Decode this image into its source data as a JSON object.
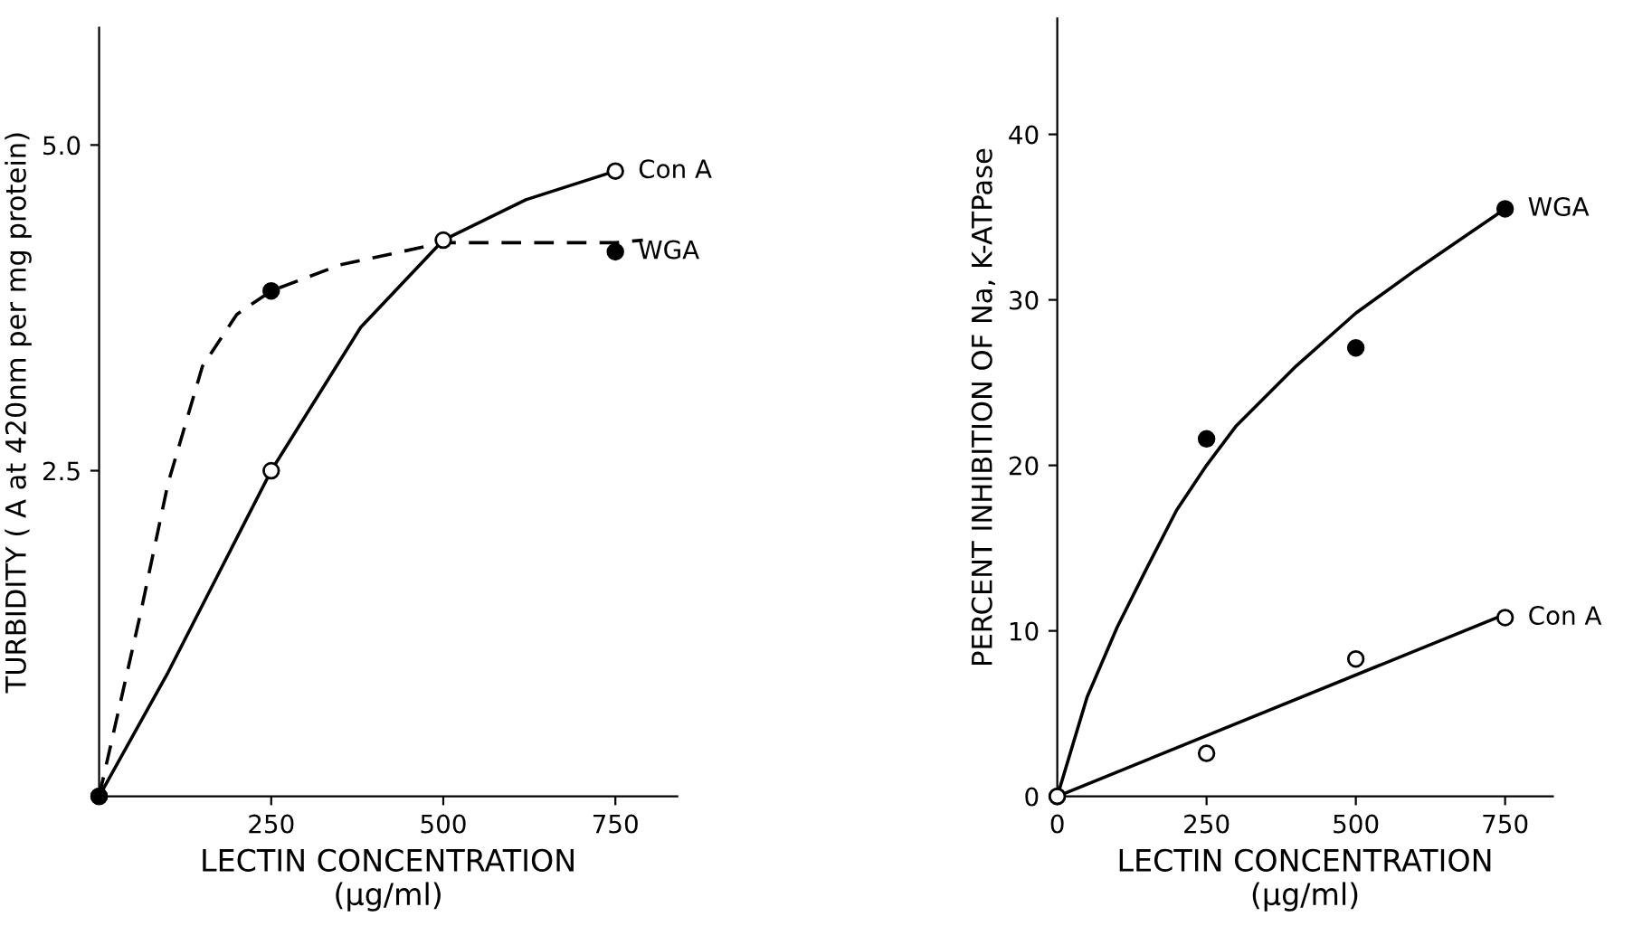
{
  "chart_data": [
    {
      "type": "scatter",
      "xlabel": "LECTIN CONCENTRATION\n(μg/ml)",
      "ylabel": "TURBIDITY ( A at 420nm per mg protein)",
      "xlim": [
        0,
        840
      ],
      "ylim": [
        0,
        5.9
      ],
      "xticks": [
        250,
        500,
        750
      ],
      "yticks": [
        2.5,
        {
          "value": 5.0,
          "label": "5.0"
        }
      ],
      "legend": false,
      "grid": false,
      "series": [
        {
          "name": "Con A",
          "marker": "circle",
          "color": "#ffffff",
          "x": [
            0,
            250,
            500,
            750
          ],
          "values": [
            0,
            2.5,
            4.27,
            4.8
          ]
        },
        {
          "name": "WGA",
          "marker": "circle",
          "color": "#000000",
          "x": [
            0,
            250,
            750
          ],
          "values": [
            0,
            3.88,
            4.18
          ]
        },
        {
          "type": "line",
          "marker": "none",
          "line_style": "solid",
          "color": "#000000",
          "x": [
            0,
            100,
            250,
            380,
            500,
            620,
            750
          ],
          "values": [
            0,
            0.95,
            2.5,
            3.6,
            4.27,
            4.58,
            4.8
          ]
        },
        {
          "type": "line",
          "marker": "none",
          "line_style": "dashed",
          "color": "#000000",
          "x": [
            0,
            60,
            100,
            150,
            200,
            250,
            350,
            500,
            750,
            790
          ],
          "values": [
            0,
            1.4,
            2.4,
            3.3,
            3.7,
            3.88,
            4.08,
            4.25,
            4.25,
            4.27
          ]
        }
      ]
    },
    {
      "type": "scatter",
      "xlabel": "LECTIN CONCENTRATION\n(μg/ml)",
      "ylabel": "PERCENT INHIBITION OF Na, K-ATPase",
      "xlim": [
        0,
        830
      ],
      "ylim": [
        0,
        47
      ],
      "xticks": [
        0,
        250,
        500,
        750
      ],
      "yticks": [
        0,
        10,
        20,
        30,
        40
      ],
      "legend": false,
      "grid": false,
      "series": [
        {
          "name": "WGA",
          "marker": "circle",
          "color": "#000000",
          "x": [
            0,
            250,
            500,
            750
          ],
          "values": [
            0,
            21.6,
            27.1,
            35.5
          ]
        },
        {
          "name": "Con A",
          "marker": "circle",
          "color": "#ffffff",
          "x": [
            0,
            250,
            500,
            750
          ],
          "values": [
            0,
            2.6,
            8.3,
            10.8
          ]
        },
        {
          "type": "line",
          "marker": "none",
          "line_style": "solid",
          "color": "#000000",
          "x": [
            0,
            50,
            100,
            150,
            200,
            250,
            300,
            400,
            500,
            600,
            750
          ],
          "values": [
            0,
            6,
            10.2,
            13.8,
            17.3,
            20,
            22.4,
            26,
            29.2,
            31.8,
            35.5
          ]
        },
        {
          "type": "line",
          "marker": "none",
          "line_style": "solid",
          "color": "#000000",
          "x": [
            0,
            750
          ],
          "values": [
            0,
            11
          ]
        }
      ]
    }
  ]
}
